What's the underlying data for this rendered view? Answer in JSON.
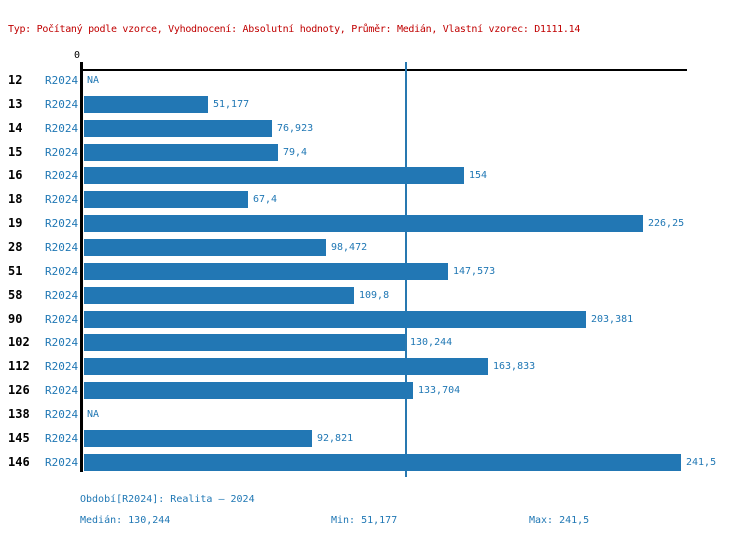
{
  "title": "Typ: Počítaný podle vzorce, Vyhodnocení: Absolutní hodnoty, Průměr: Medián, Vlastní vzorec: D1111.14",
  "colors": {
    "bar": "#2277b4",
    "blue_text": "#1f77b4",
    "title_red": "#c00000",
    "axis_black": "#000000",
    "median_line": "#2878b0",
    "background": "#ffffff"
  },
  "axis": {
    "origin_label": "0"
  },
  "chart_data": {
    "type": "bar",
    "orientation": "horizontal",
    "title": "Typ: Počítaný podle vzorce, Vyhodnocení: Absolutní hodnoty, Průměr: Medián, Vlastní vzorec: D1111.14",
    "series_label": "R2024",
    "categories": [
      "12",
      "13",
      "14",
      "15",
      "16",
      "18",
      "19",
      "28",
      "51",
      "58",
      "90",
      "102",
      "112",
      "126",
      "138",
      "145",
      "146"
    ],
    "values": [
      null,
      51.177,
      76.923,
      79.4,
      154,
      67.4,
      226.25,
      98.472,
      147.573,
      109.8,
      203.381,
      130.244,
      163.833,
      133.704,
      null,
      92.821,
      241.5
    ],
    "value_labels": [
      "NA",
      "51,177",
      "76,923",
      "79,4",
      "154",
      "67,4",
      "226,25",
      "98,472",
      "147,573",
      "109,8",
      "203,381",
      "130,244",
      "163,833",
      "133,704",
      "NA",
      "92,821",
      "241,5"
    ],
    "na_label": "NA",
    "xlim": [
      0,
      245
    ],
    "median_value": 130.244,
    "grid": false,
    "legend_position": "none"
  },
  "footer": {
    "period": "Období[R2024]: Realita – 2024",
    "median": "Medián: 130,244",
    "min": "Min: 51,177",
    "max": "Max: 241,5"
  }
}
